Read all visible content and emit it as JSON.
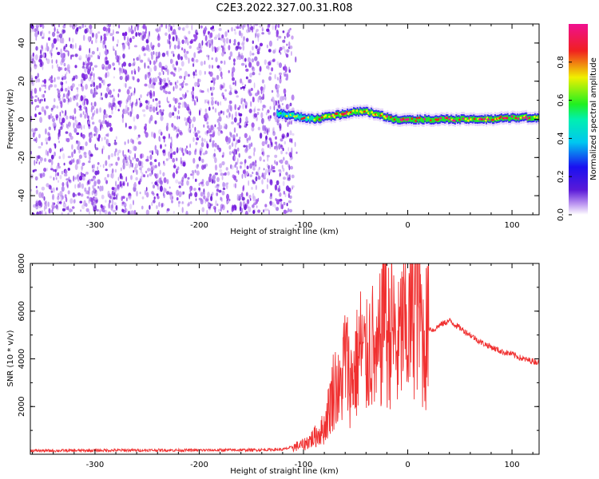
{
  "title": "C2E3.2022.327.00.31.R08",
  "colors": {
    "scatter_purple": "#7a1fe0",
    "scatter_light": "#c9a6f2",
    "line_red": "#f03030",
    "axis": "#000000"
  },
  "colorbar": {
    "label": "Normalized spectral amplitude",
    "ticks": [
      "0.0",
      "0.2",
      "0.4",
      "0.6",
      "0.8"
    ],
    "tick_values": [
      0.0,
      0.2,
      0.4,
      0.6,
      0.8
    ],
    "range": [
      0,
      1
    ],
    "colormap": "hsv-reversed (magenta, red, yellow, green, cyan, blue, purple, white)"
  },
  "chart_data": [
    {
      "type": "heatmap",
      "xlabel": "Height of straight line (km)",
      "ylabel": "Frequency (Hz)",
      "xlim": [
        -362,
        126
      ],
      "ylim": [
        -50,
        50
      ],
      "x_ticks": [
        -300,
        -200,
        -100,
        0,
        100
      ],
      "x_tick_labels": [
        "-300",
        "-200",
        "-100",
        "0",
        "100"
      ],
      "y_ticks": [
        -40,
        -20,
        0,
        20,
        40
      ],
      "y_tick_labels": [
        "-40",
        "-20",
        "0",
        "20",
        "40"
      ],
      "noise_region_x": [
        -362,
        -110
      ],
      "signal_track": {
        "x": [
          -125,
          -110,
          -100,
          -90,
          -80,
          -70,
          -60,
          -50,
          -40,
          -30,
          -20,
          -10,
          0,
          20,
          40,
          60,
          80,
          100,
          126
        ],
        "y": [
          3,
          2,
          1,
          0,
          1,
          2,
          3,
          4,
          4,
          3,
          1,
          0,
          0,
          0,
          0,
          0,
          0,
          1,
          1
        ],
        "amplitude": [
          0.3,
          0.4,
          0.5,
          0.5,
          0.55,
          0.6,
          0.6,
          0.6,
          0.55,
          0.55,
          0.6,
          0.65,
          0.7,
          0.75,
          0.7,
          0.65,
          0.6,
          0.7,
          0.6
        ]
      },
      "grid": false
    },
    {
      "type": "line",
      "xlabel": "Height of straight line (km)",
      "ylabel": "SNR (10 * v/v)",
      "xlim": [
        -362,
        126
      ],
      "ylim": [
        0,
        8000
      ],
      "x_ticks": [
        -300,
        -200,
        -100,
        0,
        100
      ],
      "x_tick_labels": [
        "-300",
        "-200",
        "-100",
        "0",
        "100"
      ],
      "y_ticks": [
        2000,
        4000,
        6000,
        8000
      ],
      "y_tick_labels": [
        "2000",
        "4000",
        "6000",
        "8000"
      ],
      "series": [
        {
          "color": "#f03030",
          "x": [
            -362,
            -340,
            -300,
            -250,
            -200,
            -150,
            -120,
            -100,
            -90,
            -80,
            -75,
            -70,
            -65,
            -60,
            -55,
            -50,
            -45,
            -40,
            -35,
            -30,
            -25,
            -22,
            -20,
            -15,
            -10,
            -5,
            0,
            5,
            10,
            15,
            20,
            25,
            30,
            35,
            40,
            50,
            60,
            70,
            80,
            90,
            100,
            110,
            126
          ],
          "y": [
            150,
            150,
            160,
            170,
            170,
            180,
            200,
            400,
            700,
            1100,
            2000,
            3000,
            2500,
            4200,
            3000,
            3600,
            4500,
            3800,
            4800,
            3500,
            5200,
            8000,
            4800,
            5500,
            4200,
            5400,
            5000,
            6200,
            6800,
            4600,
            5300,
            5200,
            5400,
            5500,
            5600,
            5300,
            5000,
            4700,
            4500,
            4300,
            4200,
            4000,
            3850
          ]
        }
      ],
      "grid": false
    }
  ]
}
